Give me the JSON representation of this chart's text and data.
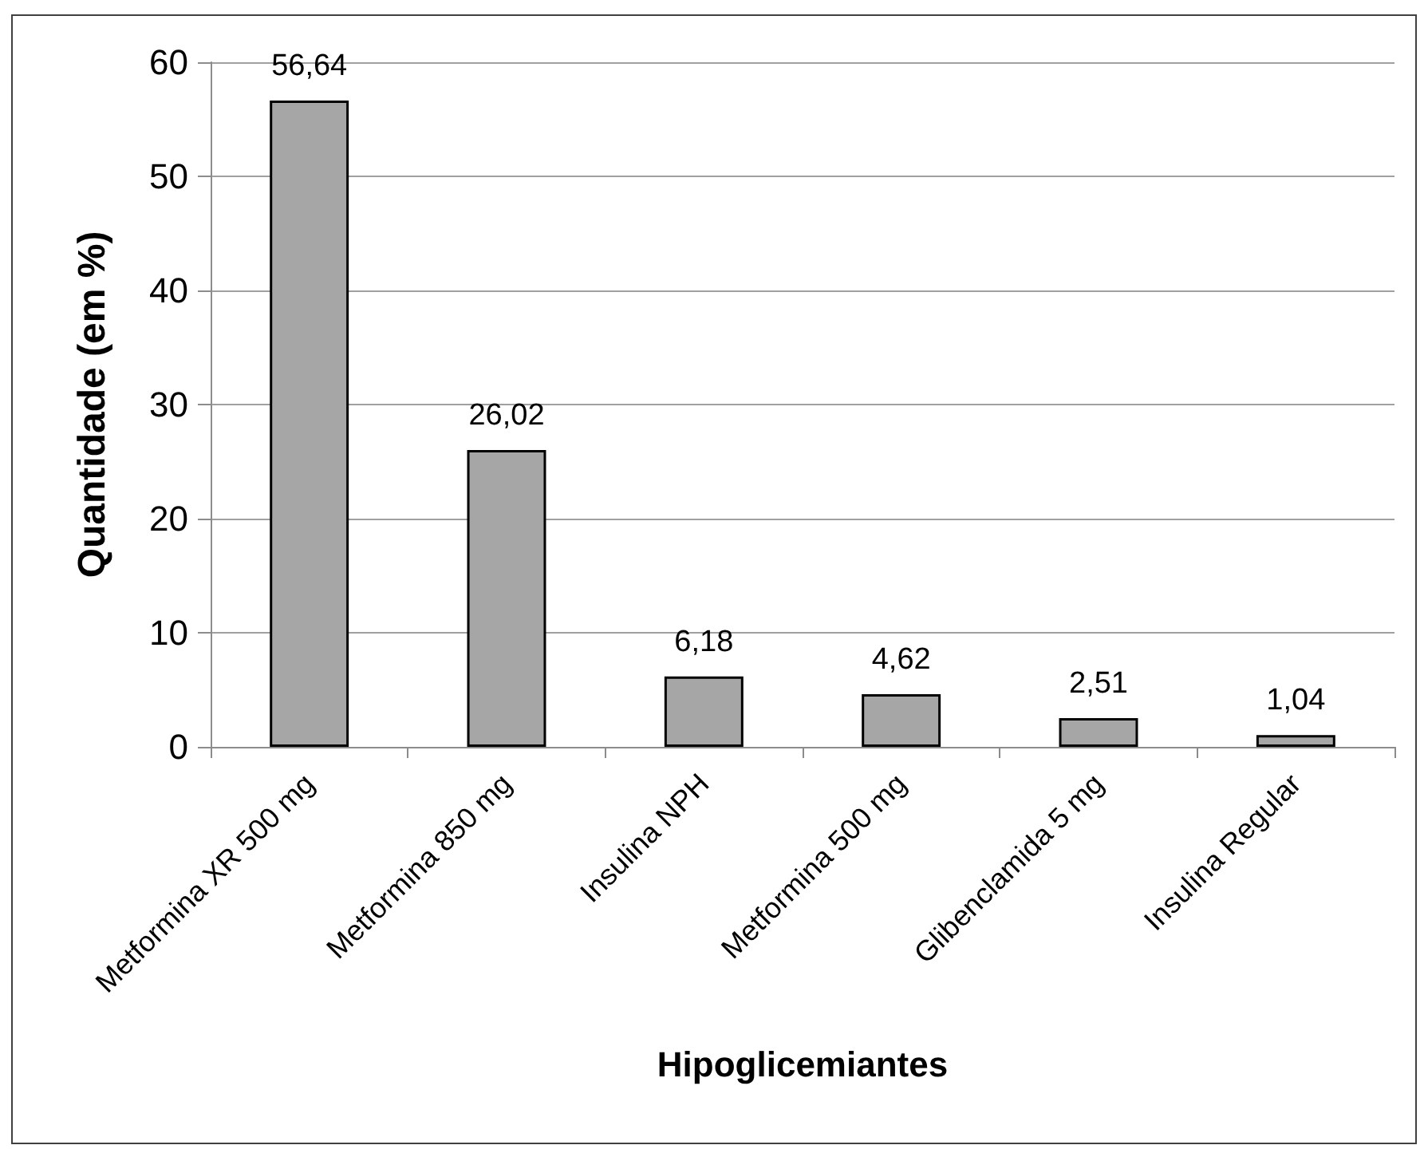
{
  "chart_data": {
    "type": "bar",
    "xlabel": "Hipoglicemiantes",
    "ylabel": "Quantidade (em %)",
    "categories": [
      "Metformina XR 500 mg",
      "Metformina 850 mg",
      "Insulina NPH",
      "Metformina 500 mg",
      "Glibenclamida 5 mg",
      "Insulina Regular"
    ],
    "values": [
      56.64,
      26.02,
      6.18,
      4.62,
      2.51,
      1.04
    ],
    "value_labels": [
      "56,64",
      "26,02",
      "6,18",
      "4,62",
      "2,51",
      "1,04"
    ],
    "color": "#a6a6a6",
    "ylim": [
      0,
      60
    ],
    "yticks": [
      0,
      10,
      20,
      30,
      40,
      50,
      60
    ],
    "grid": "y"
  }
}
